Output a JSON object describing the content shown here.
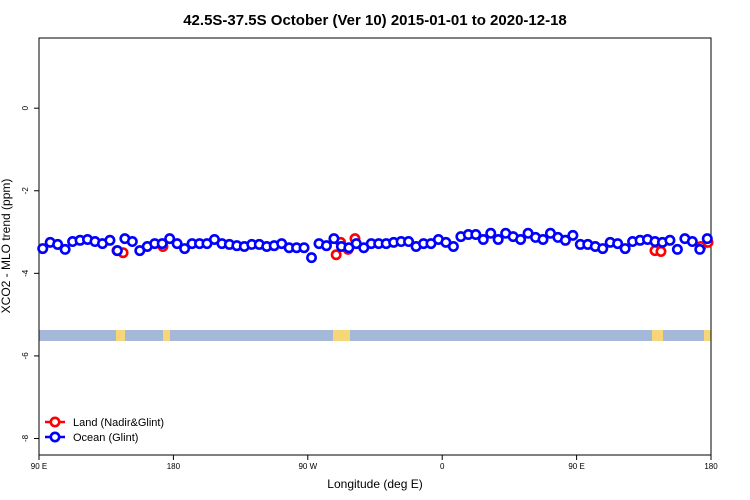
{
  "chart_data": {
    "type": "scatter",
    "title": "42.5S-37.5S October (Ver 10)   2015-01-01 to 2020-12-18",
    "xlabel": "Longitude (deg E)",
    "ylabel": "XCO2 - MLO trend (ppm)",
    "xlim": [
      90,
      540
    ],
    "ylim": [
      -8.4,
      1.7
    ],
    "xticks": [
      {
        "value": 90,
        "label": "90 E"
      },
      180,
      {
        "value": 270,
        "label": "90 W"
      },
      {
        "value": 360,
        "label": "0"
      },
      {
        "value": 450,
        "label": "90 E"
      },
      {
        "value": 540,
        "label": "180"
      }
    ],
    "yticks": [
      -8,
      -6,
      -4,
      -2,
      0
    ],
    "legend": "bottomleft",
    "series": [
      {
        "name": "Land (Nadir&Glint)",
        "color": "#ff0000",
        "x": [
          142.2,
          146.3,
          173,
          289,
          292,
          297,
          301.6,
          502.5,
          506.5,
          533.3,
          538
        ],
        "values": [
          -3.45,
          -3.5,
          -3.35,
          -3.55,
          -3.25,
          -3.42,
          -3.16,
          -3.45,
          -3.47,
          -3.35,
          -3.25
        ]
      },
      {
        "name": "Ocean (Glint)",
        "color": "#0000ff",
        "x": [
          92.5,
          97.5,
          102.5,
          107.5,
          112.5,
          117.5,
          122.5,
          127.5,
          132.5,
          137.5,
          142.5,
          147.5,
          152.5,
          157.5,
          162.5,
          167.5,
          172.5,
          177.5,
          182.5,
          187.5,
          192.5,
          197.5,
          202.5,
          207.5,
          212.5,
          217.5,
          222.5,
          227.5,
          232.5,
          237.5,
          242.5,
          247.5,
          252.5,
          257.5,
          262.5,
          267.5,
          272.5,
          277.5,
          282.5,
          287.5,
          292.5,
          297.5,
          302.5,
          307.5,
          312.5,
          317.5,
          322.5,
          327.5,
          332.5,
          337.5,
          342.5,
          347.5,
          352.5,
          357.5,
          362.5,
          367.5,
          372.5,
          377.5,
          382.5,
          387.5,
          392.5,
          397.5,
          402.5,
          407.5,
          412.5,
          417.5,
          422.5,
          427.5,
          432.5,
          437.5,
          442.5,
          447.5,
          452.5,
          457.5,
          462.5,
          467.5,
          472.5,
          477.5,
          482.5,
          487.5,
          492.5,
          497.5,
          502.5,
          507.5,
          512.5,
          517.5,
          522.5,
          527.5,
          532.5,
          537.5
        ],
        "values": [
          -3.4,
          -3.25,
          -3.3,
          -3.42,
          -3.23,
          -3.2,
          -3.18,
          -3.23,
          -3.28,
          -3.2,
          -3.45,
          -3.16,
          -3.23,
          -3.45,
          -3.35,
          -3.28,
          -3.28,
          -3.16,
          -3.28,
          -3.4,
          -3.28,
          -3.28,
          -3.28,
          -3.18,
          -3.28,
          -3.3,
          -3.33,
          -3.35,
          -3.3,
          -3.3,
          -3.35,
          -3.33,
          -3.28,
          -3.38,
          -3.38,
          -3.38,
          -3.62,
          -3.28,
          -3.33,
          -3.16,
          -3.35,
          -3.38,
          -3.28,
          -3.38,
          -3.28,
          -3.28,
          -3.28,
          -3.25,
          -3.23,
          -3.23,
          -3.35,
          -3.28,
          -3.28,
          -3.18,
          -3.25,
          -3.35,
          -3.11,
          -3.06,
          -3.06,
          -3.18,
          -3.03,
          -3.18,
          -3.03,
          -3.11,
          -3.18,
          -3.03,
          -3.13,
          -3.18,
          -3.03,
          -3.13,
          -3.2,
          -3.08,
          -3.3,
          -3.3,
          -3.35,
          -3.4,
          -3.25,
          -3.28,
          -3.4,
          -3.23,
          -3.2,
          -3.18,
          -3.23,
          -3.25,
          -3.2,
          -3.42,
          -3.16,
          -3.23,
          -3.42,
          -3.16
        ]
      }
    ]
  }
}
